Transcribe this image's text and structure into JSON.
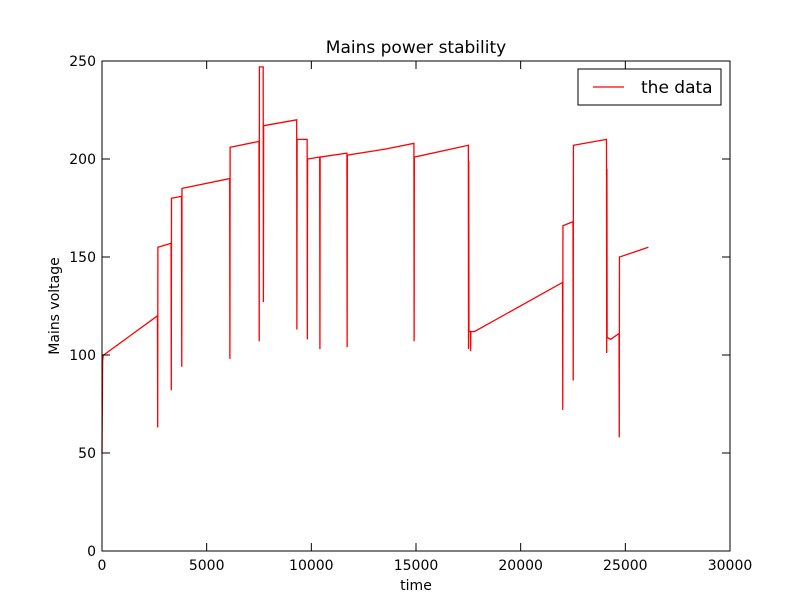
{
  "chart_data": {
    "type": "line",
    "title": "Mains power stability",
    "xlabel": "time",
    "ylabel": "Mains voltage",
    "xlim": [
      0,
      30000
    ],
    "ylim": [
      0,
      250
    ],
    "xticks": [
      0,
      5000,
      10000,
      15000,
      20000,
      25000,
      30000
    ],
    "yticks": [
      0,
      50,
      100,
      150,
      200,
      250
    ],
    "grid": false,
    "legend_position": "top-right",
    "series": [
      {
        "name": "the data",
        "color": "#ff0000",
        "x": [
          0,
          30,
          60,
          80,
          2650,
          2660,
          2670,
          2680,
          3300,
          3310,
          3320,
          3330,
          3800,
          3810,
          3820,
          3830,
          6100,
          6110,
          6120,
          6130,
          7500,
          7510,
          7520,
          7530,
          7700,
          7710,
          7720,
          7730,
          9300,
          9310,
          9320,
          9330,
          9800,
          9810,
          9820,
          9830,
          10400,
          10410,
          10420,
          10430,
          11700,
          11710,
          11720,
          11730,
          13500,
          14900,
          14910,
          14920,
          14930,
          17500,
          17510,
          17520,
          17530,
          17600,
          17610,
          17620,
          17630,
          17800,
          22000,
          22010,
          22020,
          22030,
          22500,
          22510,
          22520,
          22530,
          24100,
          24110,
          24120,
          24130,
          24300,
          24700,
          24710,
          24720,
          24730,
          26100
        ],
        "y": [
          50,
          97,
          100,
          100,
          120,
          63,
          155,
          155,
          157,
          82,
          180,
          180,
          181,
          94,
          185,
          185,
          190,
          98,
          206,
          206,
          209,
          107,
          247,
          247,
          247,
          127,
          217,
          217,
          220,
          113,
          210,
          210,
          210,
          108,
          199,
          200,
          201,
          103,
          201,
          201,
          203,
          104,
          201,
          202,
          205,
          208,
          107,
          201,
          201,
          207,
          103,
          199,
          112,
          112,
          102,
          112,
          112,
          112,
          137,
          72,
          166,
          166,
          168,
          87,
          207,
          207,
          210,
          101,
          195,
          109,
          108,
          111,
          58,
          150,
          150,
          155
        ]
      }
    ]
  }
}
